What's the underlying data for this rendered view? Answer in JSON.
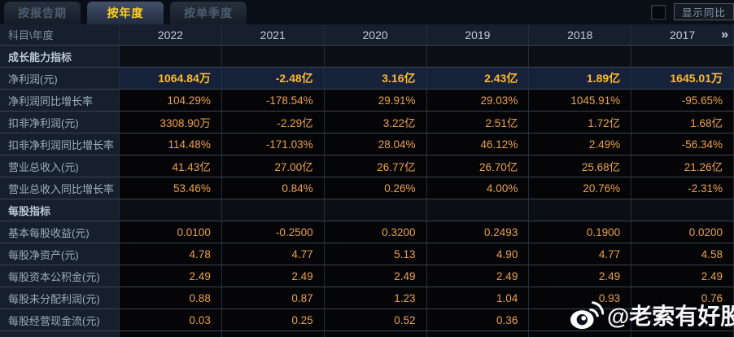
{
  "tabs": [
    {
      "label": "按报告期",
      "active": false
    },
    {
      "label": "按年度",
      "active": true
    },
    {
      "label": "按单季度",
      "active": false
    }
  ],
  "controls": {
    "show_yoy_label": "显示同比",
    "checkbox_checked": false
  },
  "table": {
    "corner_label": "科目\\年度",
    "years": [
      "2022",
      "2021",
      "2020",
      "2019",
      "2018",
      "2017"
    ],
    "more_icon": "»",
    "rows": [
      {
        "type": "section",
        "label": "成长能力指标",
        "values": [
          "",
          "",
          "",
          "",
          "",
          ""
        ]
      },
      {
        "type": "highlight",
        "label": "净利润(元)",
        "values": [
          "1064.84万",
          "-2.48亿",
          "3.16亿",
          "2.43亿",
          "1.89亿",
          "1645.01万"
        ]
      },
      {
        "type": "data",
        "label": "净利润同比增长率",
        "values": [
          "104.29%",
          "-178.54%",
          "29.91%",
          "29.03%",
          "1045.91%",
          "-95.65%"
        ]
      },
      {
        "type": "data",
        "label": "扣非净利润(元)",
        "values": [
          "3308.90万",
          "-2.29亿",
          "3.22亿",
          "2.51亿",
          "1.72亿",
          "1.68亿"
        ]
      },
      {
        "type": "data",
        "label": "扣非净利润同比增长率",
        "values": [
          "114.48%",
          "-171.03%",
          "28.04%",
          "46.12%",
          "2.49%",
          "-56.34%"
        ]
      },
      {
        "type": "data",
        "label": "营业总收入(元)",
        "values": [
          "41.43亿",
          "27.00亿",
          "26.77亿",
          "26.70亿",
          "25.68亿",
          "21.26亿"
        ]
      },
      {
        "type": "data",
        "label": "营业总收入同比增长率",
        "values": [
          "53.46%",
          "0.84%",
          "0.26%",
          "4.00%",
          "20.76%",
          "-2.31%"
        ]
      },
      {
        "type": "section",
        "label": "每股指标",
        "values": [
          "",
          "",
          "",
          "",
          "",
          ""
        ]
      },
      {
        "type": "data",
        "label": "基本每股收益(元)",
        "values": [
          "0.0100",
          "-0.2500",
          "0.3200",
          "0.2493",
          "0.1900",
          "0.0200"
        ]
      },
      {
        "type": "data",
        "label": "每股净资产(元)",
        "values": [
          "4.78",
          "4.77",
          "5.13",
          "4.90",
          "4.77",
          "4.58"
        ]
      },
      {
        "type": "data",
        "label": "每股资本公积金(元)",
        "values": [
          "2.49",
          "2.49",
          "2.49",
          "2.49",
          "2.49",
          "2.49"
        ]
      },
      {
        "type": "data",
        "label": "每股未分配利润(元)",
        "values": [
          "0.88",
          "0.87",
          "1.23",
          "1.04",
          "0.93",
          "0.76"
        ]
      },
      {
        "type": "data",
        "label": "每股经营现金流(元)",
        "values": [
          "0.03",
          "0.25",
          "0.52",
          "0.36",
          "",
          ""
        ]
      }
    ]
  },
  "watermark": {
    "text": "@老索有好股",
    "icon": "weibo-icon"
  },
  "colors": {
    "background": "#0a0f17",
    "panel": "#16202c",
    "value_cell_bg": "#050508",
    "highlight_row_bg": "#16223a",
    "value_orange": "#eba14b",
    "highlight_orange": "#ffb92d",
    "active_tab_text": "#ffd026",
    "grid_line": "#3a4450"
  }
}
